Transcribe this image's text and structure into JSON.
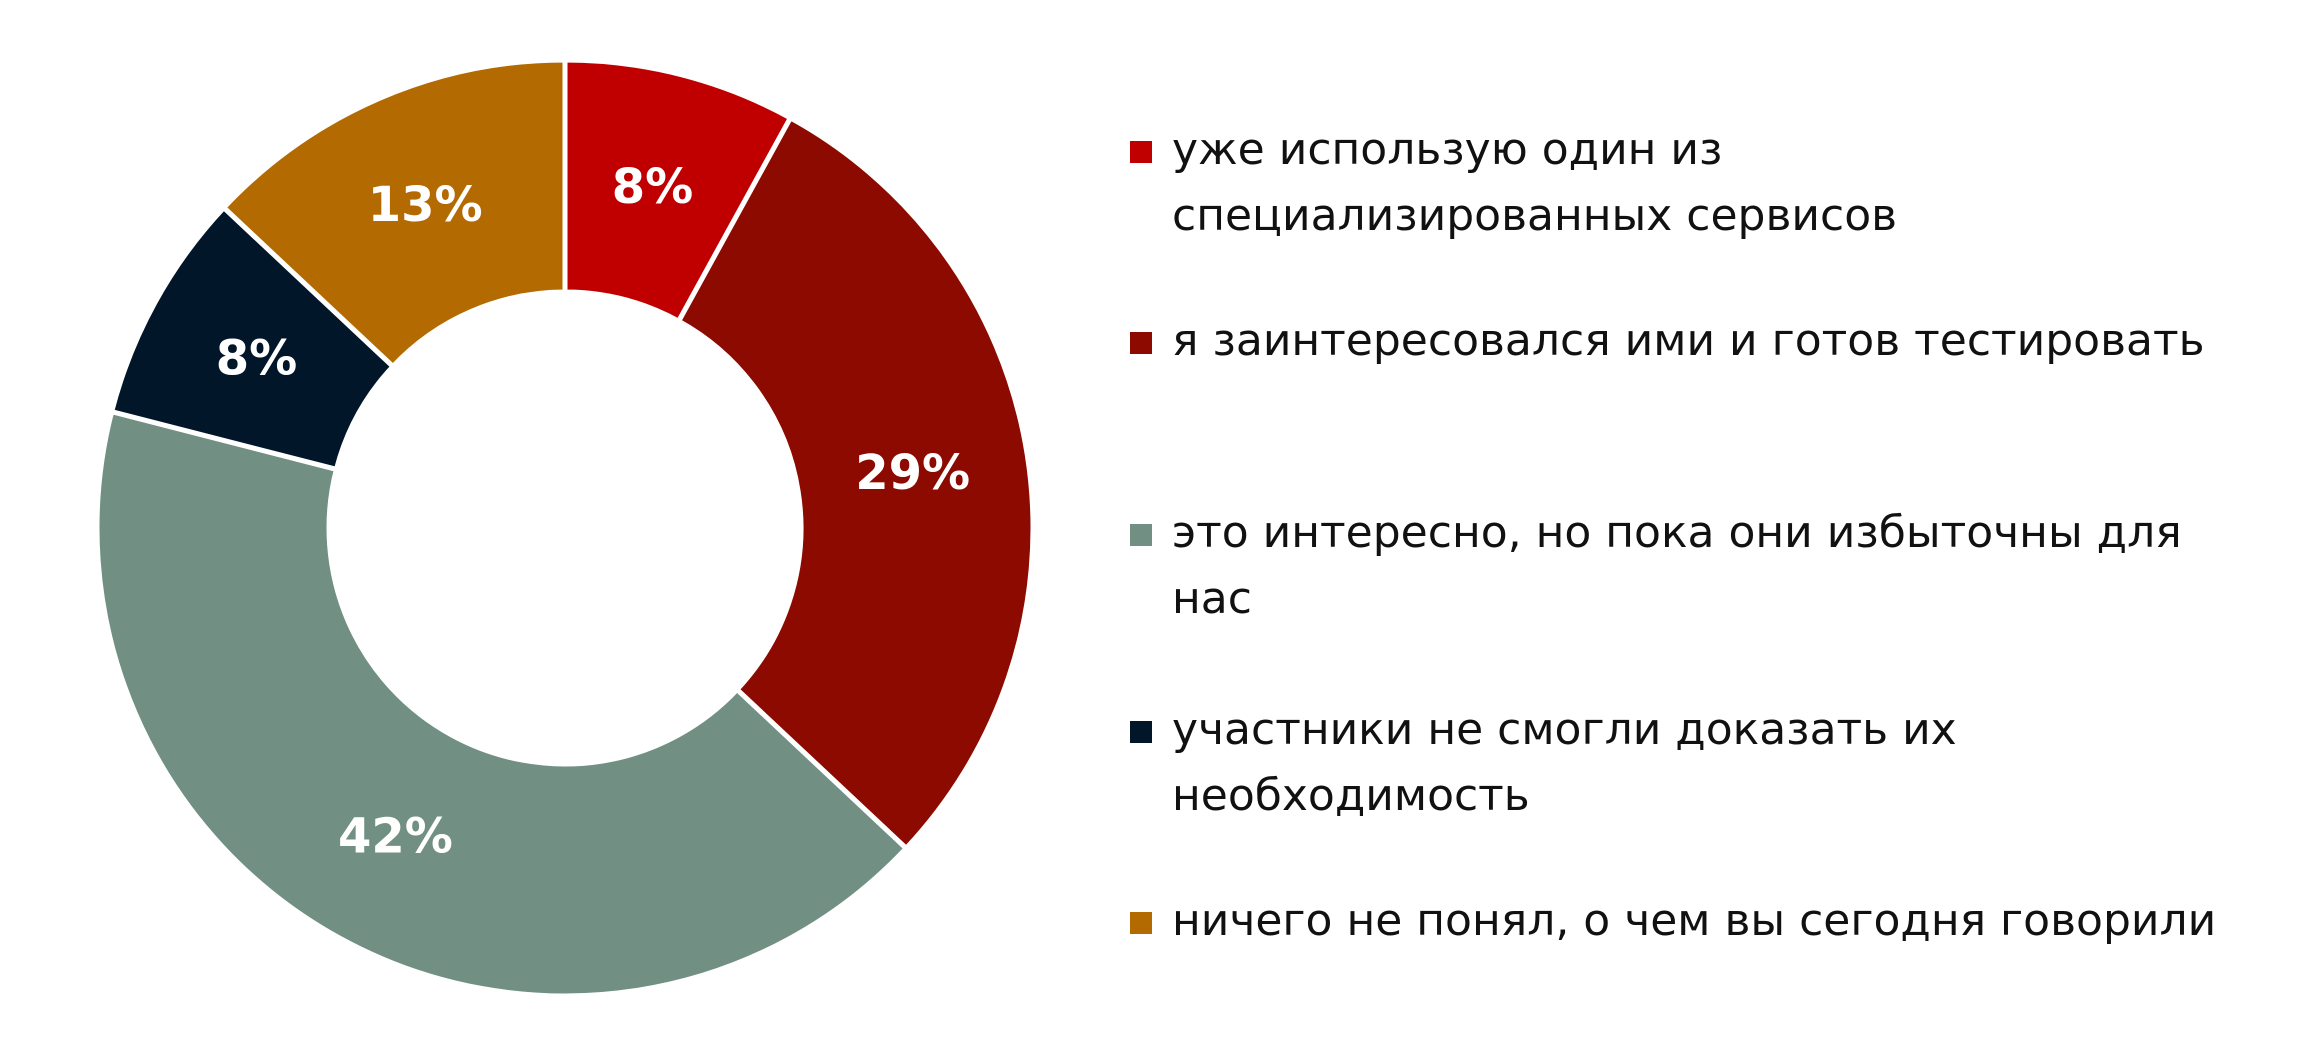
{
  "chart_data": {
    "type": "pie",
    "donut": true,
    "categories": [
      "уже использую один из специализированных сервисов",
      "я заинтересовался ими и готов тестировать",
      "это интересно, но пока они избыточны для нас",
      "участники не смогли доказать их необходимость",
      "ничего не понял, о чем вы сегодня говорили"
    ],
    "values": [
      8,
      29,
      42,
      8,
      13
    ],
    "data_labels": [
      "8%",
      "29%",
      "42%",
      "8%",
      "13%"
    ],
    "colors": [
      "#C00000",
      "#8C0A00",
      "#718F82",
      "#02162A",
      "#B36A00"
    ],
    "legend_position": "right",
    "start_angle": "top, clockwise"
  }
}
